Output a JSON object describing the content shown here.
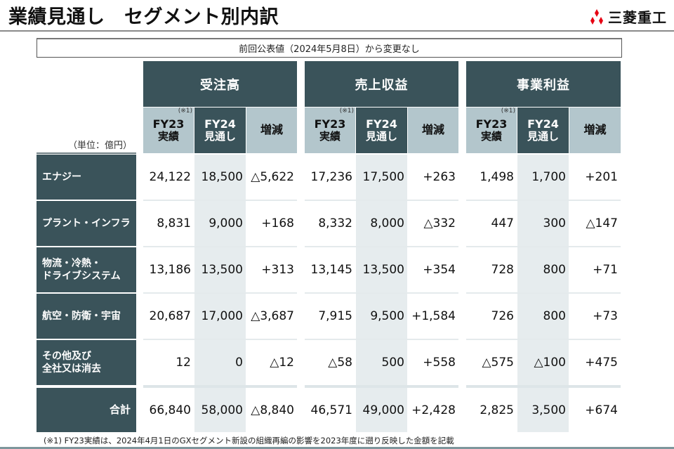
{
  "header": {
    "title": "業績見通し　セグメント別内訳",
    "logo_text": "三菱重工",
    "logo_icon": "three-diamonds-icon",
    "logo_color": "#e60012"
  },
  "notice": "前回公表値（2024年5月8日）から変更なし",
  "unit_label": "（単位：億円）",
  "groups": [
    {
      "label": "受注高"
    },
    {
      "label": "売上収益"
    },
    {
      "label": "事業利益"
    }
  ],
  "subheaders": {
    "fy23": "FY23",
    "fy23_sub": "実績",
    "fy23_note": "(※1)",
    "fy24": "FY24",
    "fy24_sub": "見通し",
    "change": "増減"
  },
  "rows": [
    {
      "label": "エナジー",
      "values": [
        "24,122",
        "18,500",
        "△5,622",
        "17,236",
        "17,500",
        "+263",
        "1,498",
        "1,700",
        "+201"
      ]
    },
    {
      "label": "プラント・インフラ",
      "values": [
        "8,831",
        "9,000",
        "+168",
        "8,332",
        "8,000",
        "△332",
        "447",
        "300",
        "△147"
      ]
    },
    {
      "label": "物流・冷熱・\nドライブシステム",
      "label_lines": [
        "物流・冷熱・",
        "ドライブシステム"
      ],
      "values": [
        "13,186",
        "13,500",
        "+313",
        "13,145",
        "13,500",
        "+354",
        "728",
        "800",
        "+71"
      ]
    },
    {
      "label": "航空・防衛・宇宙",
      "values": [
        "20,687",
        "17,000",
        "△3,687",
        "7,915",
        "9,500",
        "+1,584",
        "726",
        "800",
        "+73"
      ]
    },
    {
      "label": "その他及び\n全社又は消去",
      "label_lines": [
        "その他及び",
        "全社又は消去"
      ],
      "values": [
        "12",
        "0",
        "△12",
        "△58",
        "500",
        "+558",
        "△575",
        "△100",
        "+475"
      ]
    },
    {
      "label": "合計",
      "values": [
        "66,840",
        "58,000",
        "△8,840",
        "46,571",
        "49,000",
        "+2,428",
        "2,825",
        "3,500",
        "+674"
      ]
    }
  ],
  "footnote": "(※1) FY23実績は、2024年4月1日のGXセグメント新設の組織再編の影響を2023年度に遡り反映した金額を記載",
  "colors": {
    "header_dark": "#3a535a",
    "header_light": "#b3c6cc",
    "shaded_column": "#e6ecee",
    "logo_red": "#e60012"
  }
}
